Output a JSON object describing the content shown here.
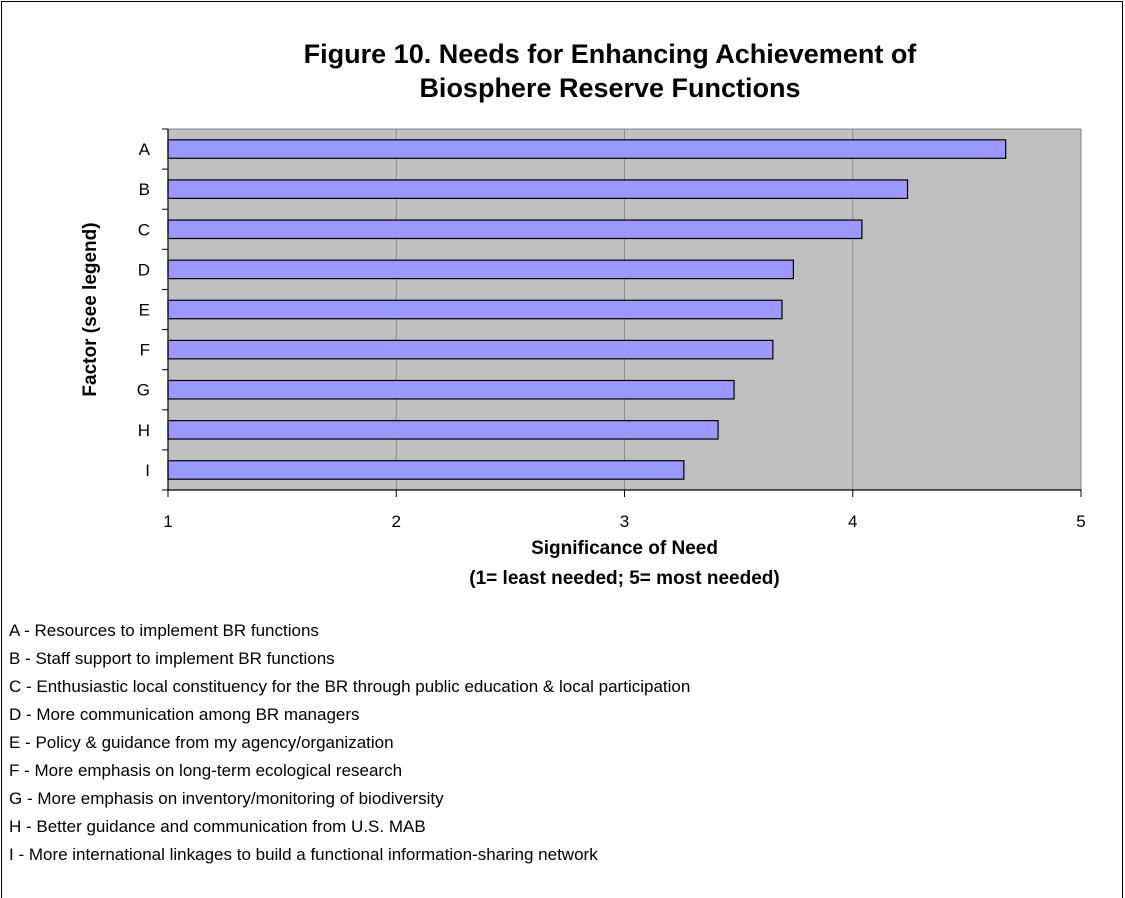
{
  "chart_data": {
    "type": "bar",
    "orientation": "horizontal",
    "title": "Figure 10.  Needs for Enhancing Achievement of",
    "title_line2": "Biosphere Reserve Functions",
    "categories": [
      "A",
      "B",
      "C",
      "D",
      "E",
      "F",
      "G",
      "H",
      "I"
    ],
    "values": [
      4.67,
      4.24,
      4.04,
      3.74,
      3.69,
      3.65,
      3.48,
      3.41,
      3.26
    ],
    "xlim": [
      1,
      5
    ],
    "xticks": [
      "1",
      "2",
      "3",
      "4",
      "5"
    ],
    "xlabel": "Significance of Need",
    "xlabel_line2": "(1= least needed; 5= most needed)",
    "ylabel": "Factor (see legend)",
    "grid": true,
    "plot_background": "#c0c0c0",
    "bar_color": "#9999ff",
    "bar_edge_color": "#000000"
  },
  "legend": {
    "items": [
      "A - Resources to implement BR functions",
      "B - Staff support to implement BR functions",
      "C - Enthusiastic local constituency for the BR through public education & local participation",
      "D - More communication among BR managers",
      "E - Policy & guidance from my agency/organization",
      "F - More emphasis on long-term ecological research",
      "G - More emphasis on inventory/monitoring of biodiversity",
      "H - Better guidance and communication from U.S. MAB",
      "I -  More international linkages to build a functional information-sharing network"
    ]
  }
}
